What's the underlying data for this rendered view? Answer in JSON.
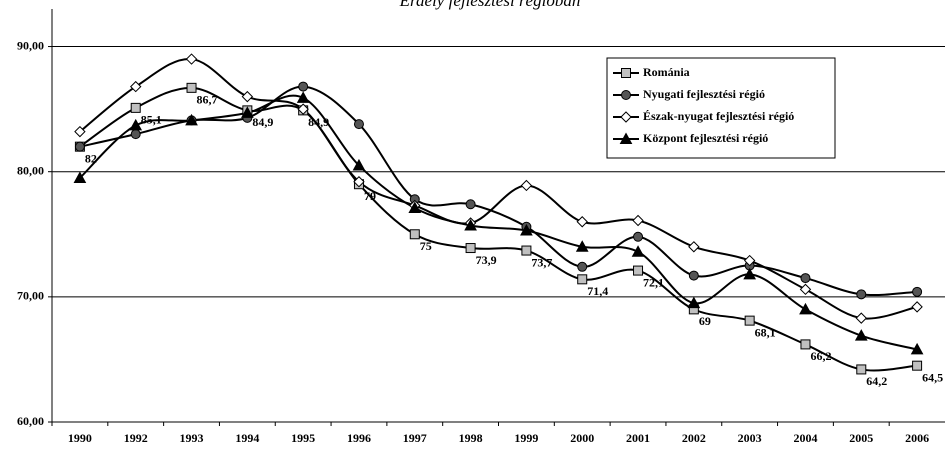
{
  "chart_data": {
    "type": "line",
    "title": "Erdély fejlesztési régióban",
    "categories": [
      "1990",
      "1992",
      "1993",
      "1994",
      "1995",
      "1996",
      "1997",
      "1998",
      "1999",
      "2000",
      "2001",
      "2002",
      "2003",
      "2004",
      "2005",
      "2006"
    ],
    "series": [
      {
        "name": "Románia",
        "color": "#000000",
        "marker": "square",
        "fill": "#c0c0c0",
        "values": [
          82,
          85.1,
          86.7,
          84.9,
          84.9,
          79,
          75,
          73.9,
          73.7,
          71.4,
          72.1,
          69,
          68.1,
          66.2,
          64.2,
          64.5
        ],
        "value_labels": [
          "82",
          "85,1",
          "86,7",
          "84,9",
          "84,9",
          "79",
          "75",
          "73,9",
          "73,7",
          "71,4",
          "72,1",
          "69",
          "68,1",
          "66,2",
          "64,2",
          "64,5"
        ]
      },
      {
        "name": "Nyugati fejlesztési régió",
        "color": "#000000",
        "marker": "circle",
        "fill": "#555555",
        "values": [
          82,
          83,
          84.1,
          84.3,
          86.8,
          83.8,
          77.8,
          77.4,
          75.6,
          72.4,
          74.8,
          71.7,
          72.5,
          71.5,
          70.2,
          70.4
        ]
      },
      {
        "name": "Észak-nyugat fejlesztési régió",
        "color": "#000000",
        "marker": "diamond",
        "fill": "#ffffff",
        "values": [
          83.2,
          86.8,
          89,
          86,
          85,
          79.2,
          77.3,
          75.9,
          78.9,
          76,
          76.1,
          74,
          72.9,
          70.6,
          68.3,
          69.2
        ]
      },
      {
        "name": "Központ fejlesztési régió",
        "color": "#000000",
        "marker": "triangle",
        "fill": "#000000",
        "values": [
          79.5,
          83.7,
          84.1,
          84.7,
          85.9,
          80.5,
          77.1,
          75.7,
          75.3,
          74,
          73.6,
          69.5,
          71.8,
          69,
          66.9,
          65.8
        ]
      }
    ],
    "ylim": [
      60,
      93
    ],
    "yticks": [
      {
        "value": 60,
        "label": "60,00"
      },
      {
        "value": 70,
        "label": "70,00"
      },
      {
        "value": 80,
        "label": "80,00"
      },
      {
        "value": 90,
        "label": "90,00"
      }
    ],
    "grid": true,
    "legend": "upper right"
  }
}
